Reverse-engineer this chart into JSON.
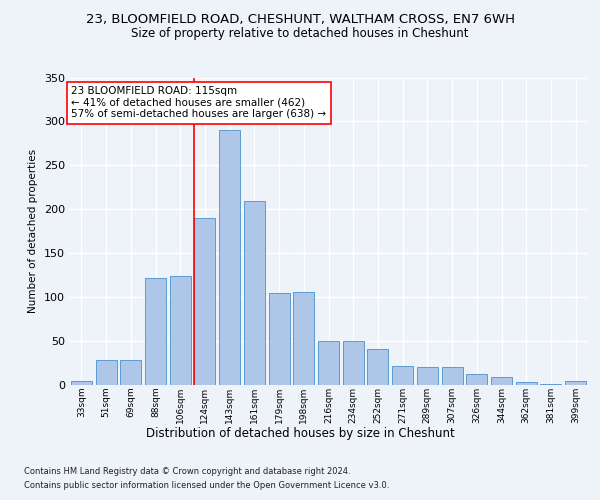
{
  "title1": "23, BLOOMFIELD ROAD, CHESHUNT, WALTHAM CROSS, EN7 6WH",
  "title2": "Size of property relative to detached houses in Cheshunt",
  "xlabel": "Distribution of detached houses by size in Cheshunt",
  "ylabel": "Number of detached properties",
  "categories": [
    "33sqm",
    "51sqm",
    "69sqm",
    "88sqm",
    "106sqm",
    "124sqm",
    "143sqm",
    "161sqm",
    "179sqm",
    "198sqm",
    "216sqm",
    "234sqm",
    "252sqm",
    "271sqm",
    "289sqm",
    "307sqm",
    "326sqm",
    "344sqm",
    "362sqm",
    "381sqm",
    "399sqm"
  ],
  "values": [
    4,
    29,
    29,
    122,
    124,
    190,
    290,
    210,
    105,
    106,
    50,
    50,
    41,
    22,
    20,
    20,
    13,
    9,
    3,
    1,
    4
  ],
  "bar_color": "#aec6e8",
  "bar_edge_color": "#5b9bd5",
  "red_line_index": 5,
  "annotation_text": "23 BLOOMFIELD ROAD: 115sqm\n← 41% of detached houses are smaller (462)\n57% of semi-detached houses are larger (638) →",
  "annotation_box_color": "white",
  "annotation_box_edge": "red",
  "footer1": "Contains HM Land Registry data © Crown copyright and database right 2024.",
  "footer2": "Contains public sector information licensed under the Open Government Licence v3.0.",
  "background_color": "#eef2f9",
  "grid_color": "white",
  "ylim": [
    0,
    350
  ],
  "yticks": [
    0,
    50,
    100,
    150,
    200,
    250,
    300,
    350
  ]
}
